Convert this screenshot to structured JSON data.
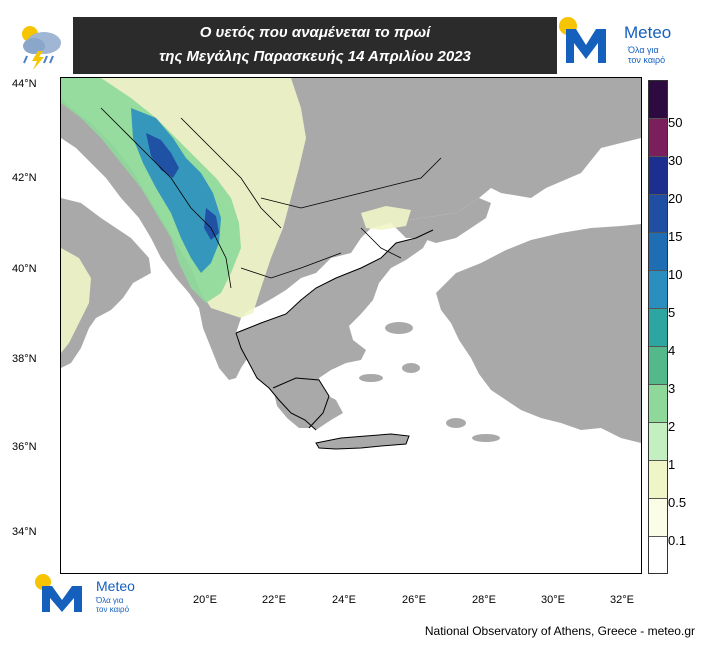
{
  "header": {
    "title_line1": "Ο υετός που αναμένεται το πρωί",
    "title_line2": "της Μεγάλης Παρασκευής 14 Απριλίου 2023",
    "icon": "rain-cloud-lightning-icon"
  },
  "logo": {
    "name": "Meteo",
    "tagline_line1": "Όλα για",
    "tagline_line2": "τον καιρό"
  },
  "map": {
    "lat_labels": [
      "44°N",
      "42°N",
      "40°N",
      "38°N",
      "36°N",
      "34°N"
    ],
    "lon_labels": [
      "20°E",
      "22°E",
      "24°E",
      "26°E",
      "28°E",
      "30°E",
      "32°E"
    ],
    "land_color": "#a9a9a9",
    "sea_color": "#ffffff"
  },
  "colorbar": {
    "labels": [
      "50",
      "30",
      "20",
      "15",
      "10",
      "5",
      "4",
      "3",
      "2",
      "1",
      "0.5",
      "0.1"
    ],
    "colors": [
      "#2d0a3f",
      "#7a1f5c",
      "#1c2f8f",
      "#1f4ea3",
      "#1f6eb4",
      "#2a8fbf",
      "#2da5a0",
      "#53b88a",
      "#8ed99a",
      "#c4efc0",
      "#f0f5c8",
      "#fcfde6",
      "#ffffff"
    ]
  },
  "footer": {
    "credit": "National Observatory of Athens, Greece - meteo.gr"
  }
}
